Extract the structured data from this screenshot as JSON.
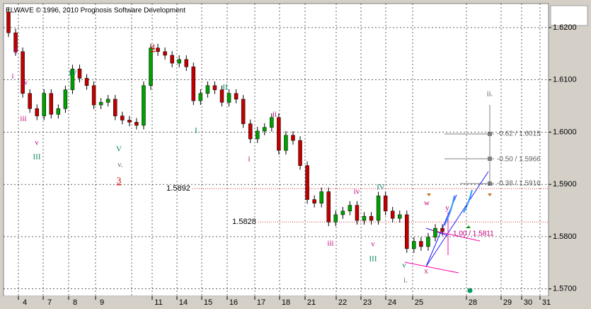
{
  "chart_data": {
    "type": "candlestick",
    "title": "ELWAVE © 1996, 2010 Prognosis Software Development",
    "up_color": "#00a000",
    "down_color": "#c00000",
    "grid": true,
    "ylim": [
      1.5686,
      1.6246
    ],
    "yticks": [
      {
        "value": 1.57,
        "label": "1.5700"
      },
      {
        "value": 1.58,
        "label": "1.5800"
      },
      {
        "value": 1.59,
        "label": "1.5900"
      },
      {
        "value": 1.6,
        "label": "1.6000"
      },
      {
        "value": 1.61,
        "label": "1.6100"
      },
      {
        "value": 1.62,
        "label": "1.6200"
      }
    ],
    "x_labels": [
      "4",
      "7",
      "8",
      "9",
      "11",
      "14",
      "15",
      "16",
      "17",
      "18",
      "21",
      "22",
      "23",
      "24",
      "25",
      "28",
      "29",
      "30",
      "31"
    ],
    "open": [
      1.623,
      1.619,
      1.6154,
      1.6074,
      1.6045,
      1.6031,
      1.6074,
      1.6034,
      1.6045,
      1.6081,
      1.6121,
      1.6103,
      1.6089,
      1.6052,
      1.6057,
      1.6063,
      1.6031,
      1.6023,
      1.6019,
      1.6013,
      1.6089,
      1.6161,
      1.6154,
      1.6147,
      1.6132,
      1.6139,
      1.6125,
      1.606,
      1.6074,
      1.6089,
      1.6081,
      1.6057,
      1.6074,
      1.6063,
      1.6016,
      1.5987,
      1.6002,
      1.6009,
      1.6028,
      1.5965,
      1.5994,
      1.5984,
      1.5936,
      1.5871,
      1.5864,
      1.5886,
      1.5828,
      1.5842,
      1.5849,
      1.586,
      1.5831,
      1.5839,
      1.5831,
      1.5878,
      1.5849,
      1.5835,
      1.5842,
      1.5777,
      1.5791,
      1.5781,
      1.5799,
      1.5816
    ],
    "high": [
      1.6238,
      1.6198,
      1.6162,
      1.6082,
      1.6053,
      1.6082,
      1.6082,
      1.6053,
      1.6089,
      1.6129,
      1.6129,
      1.6111,
      1.6097,
      1.6065,
      1.6071,
      1.6071,
      1.6039,
      1.6031,
      1.6027,
      1.6097,
      1.6169,
      1.6169,
      1.6162,
      1.6155,
      1.6147,
      1.6147,
      1.6133,
      1.6082,
      1.6097,
      1.6097,
      1.6089,
      1.6082,
      1.6082,
      1.6071,
      1.6024,
      1.601,
      1.6017,
      1.6036,
      1.6036,
      1.6002,
      1.6002,
      1.5992,
      1.5944,
      1.5879,
      1.5894,
      1.5894,
      1.585,
      1.5857,
      1.5868,
      1.5868,
      1.5847,
      1.5847,
      1.5886,
      1.5886,
      1.5857,
      1.585,
      1.585,
      1.5799,
      1.5799,
      1.5807,
      1.5824,
      1.5824
    ],
    "low": [
      1.6182,
      1.6146,
      1.6066,
      1.6037,
      1.6023,
      1.6023,
      1.6026,
      1.6026,
      1.6037,
      1.6073,
      1.6095,
      1.6081,
      1.6044,
      1.6044,
      1.6049,
      1.6023,
      1.6015,
      1.6011,
      1.6005,
      1.6005,
      1.6081,
      1.6146,
      1.6139,
      1.6124,
      1.6124,
      1.6117,
      1.6052,
      1.6052,
      1.6066,
      1.6073,
      1.6049,
      1.6049,
      1.6055,
      1.6008,
      1.5979,
      1.5979,
      1.5994,
      1.6001,
      1.5957,
      1.5957,
      1.5976,
      1.5928,
      1.5863,
      1.5856,
      1.5856,
      1.582,
      1.582,
      1.5834,
      1.5841,
      1.5823,
      1.5823,
      1.5823,
      1.5823,
      1.5841,
      1.5827,
      1.5827,
      1.5769,
      1.5769,
      1.5773,
      1.5773,
      1.5791,
      1.5802
    ],
    "close": [
      1.619,
      1.6154,
      1.6074,
      1.6045,
      1.6031,
      1.6074,
      1.6034,
      1.6045,
      1.6081,
      1.6121,
      1.6103,
      1.6089,
      1.6052,
      1.6057,
      1.6063,
      1.6031,
      1.6023,
      1.6019,
      1.6013,
      1.6089,
      1.6161,
      1.6154,
      1.6147,
      1.6132,
      1.6139,
      1.6125,
      1.606,
      1.6074,
      1.6089,
      1.6081,
      1.6057,
      1.6074,
      1.6063,
      1.6016,
      1.5987,
      1.6002,
      1.6009,
      1.6028,
      1.5965,
      1.5994,
      1.5984,
      1.5936,
      1.5871,
      1.5864,
      1.5886,
      1.5828,
      1.5842,
      1.5849,
      1.586,
      1.5831,
      1.5839,
      1.5831,
      1.5878,
      1.5849,
      1.5835,
      1.5842,
      1.5777,
      1.5791,
      1.5781,
      1.5799,
      1.5816,
      1.581
    ],
    "levels": [
      {
        "value": 1.5892,
        "label": "1.5892"
      },
      {
        "value": 1.5828,
        "label": "1.5828"
      }
    ],
    "annotations": [
      "ii",
      "i",
      "iv",
      "iii",
      "v",
      "III",
      "IV",
      "V",
      "v.",
      "3",
      "4",
      "II",
      "I",
      "ii",
      "i",
      "iv",
      "IV",
      "iii",
      "v",
      "III",
      "v",
      "i.",
      "w",
      "x",
      "y",
      "ii.",
      "-0.62 / 1.6015",
      "-0.50 / 1.5966",
      "-0.38 / 1.5916",
      "1.00 / 1.5811"
    ]
  }
}
